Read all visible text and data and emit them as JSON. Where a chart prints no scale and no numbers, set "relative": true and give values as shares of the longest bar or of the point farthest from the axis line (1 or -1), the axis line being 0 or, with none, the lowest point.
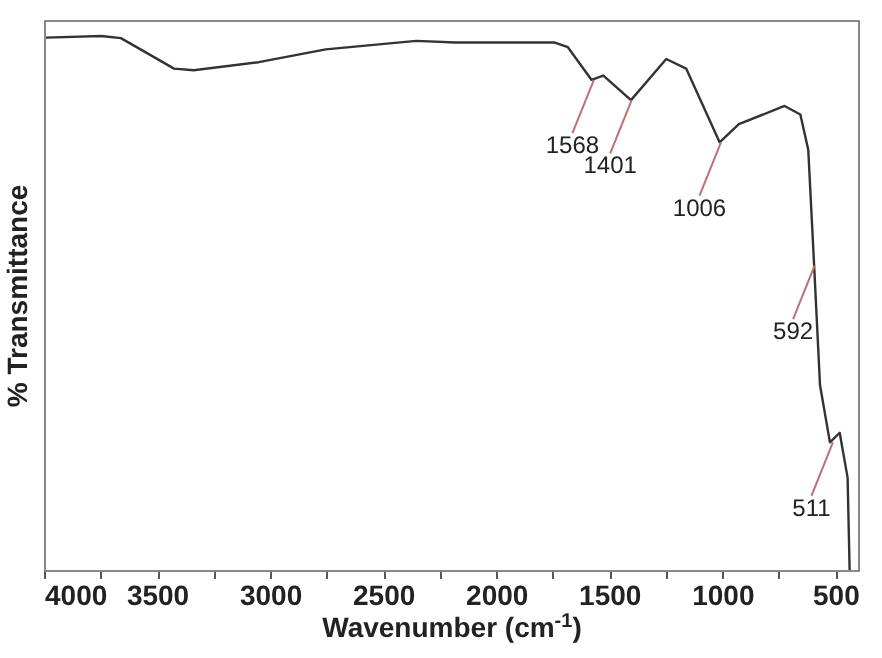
{
  "chart_data": {
    "type": "line",
    "xlabel": "Wavenumber (cm$^{-1}$)",
    "ylabel": "% Transmittance",
    "relative": true,
    "tick_labels": "x",
    "xlim": [
      4000,
      400
    ],
    "xticks": [
      4000,
      {
        "value": 3750,
        "label": null
      },
      3500,
      {
        "value": 3250,
        "label": null
      },
      3000,
      {
        "value": 2750,
        "label": null
      },
      2500,
      {
        "value": 2250,
        "label": null
      },
      2000,
      {
        "value": 1750,
        "label": null
      },
      1500,
      {
        "value": 1250,
        "label": null
      },
      1000,
      {
        "value": 750,
        "label": null
      },
      500
    ],
    "x": [
      3991,
      3747,
      3660,
      3573,
      3425,
      3338,
      3050,
      2754,
      2354,
      2180,
      1744,
      1683,
      1579,
      1526,
      1404,
      1248,
      1160,
      1012,
      927,
      725,
      655,
      620,
      594,
      568,
      524,
      481,
      446,
      437
    ],
    "series": [
      {
        "color": "#333333",
        "values": [
          0.997,
          1.0,
          0.996,
          0.975,
          0.939,
          0.936,
          0.951,
          0.975,
          0.991,
          0.988,
          0.988,
          0.979,
          0.918,
          0.926,
          0.88,
          0.957,
          0.939,
          0.801,
          0.835,
          0.869,
          0.853,
          0.787,
          0.57,
          0.346,
          0.239,
          0.257,
          0.173,
          0
        ]
      }
    ],
    "annotations": [
      {
        "text": "1568",
        "x": 1568,
        "y": 0.918
      },
      {
        "text": "1401",
        "x": 1401,
        "y": 0.88
      },
      {
        "text": "1006",
        "x": 1006,
        "y": 0.801
      },
      {
        "text": "592",
        "x": 592,
        "y": 0.57
      },
      {
        "text": "511",
        "x": 511,
        "y": 0.239
      }
    ]
  }
}
